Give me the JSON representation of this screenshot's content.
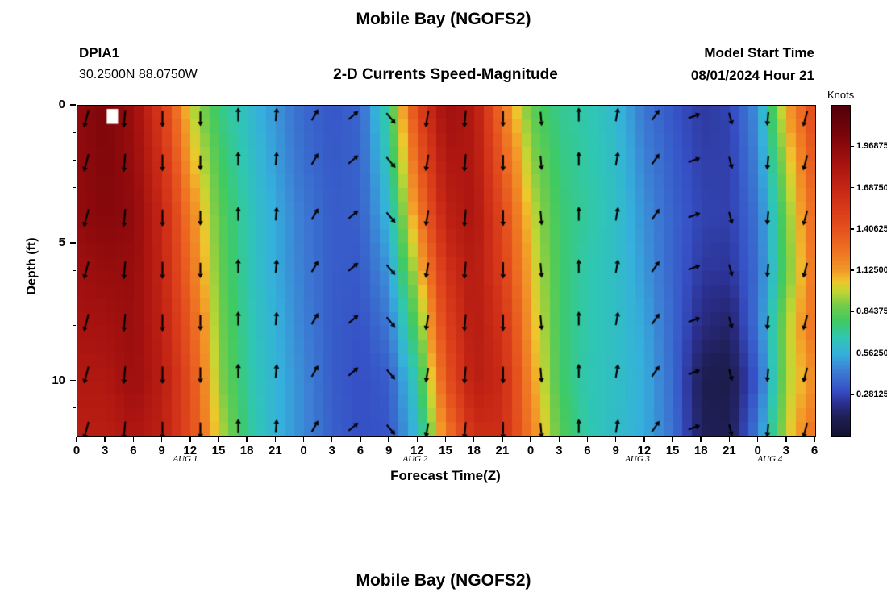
{
  "page": {
    "title_top": "Mobile Bay (NGOFS2)",
    "title_bottom": "Mobile Bay (NGOFS2)"
  },
  "header": {
    "station_id": "DPIA1",
    "station_coords": "30.2500N  88.0750W",
    "plot_subtitle": "2-D Currents Speed-Magnitude",
    "model_start_label": "Model Start Time",
    "model_start_value": "08/01/2024 Hour 21"
  },
  "chart_data": {
    "type": "heatmap",
    "title": "Mobile Bay (NGOFS2)",
    "subtitle": "2-D Currents Speed-Magnitude",
    "xlabel": "Forecast Time(Z)",
    "ylabel": "Depth (ft)",
    "colorbar_label": "Knots",
    "colorbar_range": [
      0,
      2.25
    ],
    "colorbar_tick_labels": [
      "1.96875",
      "1.68750",
      "1.40625",
      "1.12500",
      "0.84375",
      "0.56250",
      "0.28125"
    ],
    "x_hours_range": [
      0,
      78
    ],
    "x_tick_hours": [
      0,
      3,
      6,
      9,
      12,
      15,
      18,
      21,
      24,
      27,
      30,
      33,
      36,
      39,
      42,
      45,
      48,
      51,
      54,
      57,
      60,
      63,
      66,
      69,
      72,
      75,
      78
    ],
    "x_tick_labels": [
      "0",
      "3",
      "6",
      "9",
      "12",
      "15",
      "18",
      "21",
      "0",
      "3",
      "6",
      "9",
      "12",
      "15",
      "18",
      "21",
      "0",
      "3",
      "6",
      "9",
      "12",
      "15",
      "18",
      "21",
      "0",
      "3",
      "6"
    ],
    "date_labels": [
      {
        "label": "AUG 1",
        "t": 11.5
      },
      {
        "label": "AUG 2",
        "t": 35.8
      },
      {
        "label": "AUG 3",
        "t": 59.3
      },
      {
        "label": "AUG 4",
        "t": 73.3
      }
    ],
    "depth_range": [
      0,
      12
    ],
    "y_ticks": [
      {
        "label": "0",
        "depth": 0
      },
      {
        "label": "5",
        "depth": 5
      },
      {
        "label": "10",
        "depth": 10
      }
    ],
    "grid_t": [
      0,
      3,
      6,
      9,
      12,
      15,
      18,
      21,
      24,
      27,
      30,
      33,
      36,
      39,
      42,
      45,
      48,
      51,
      54,
      57,
      60,
      63,
      66,
      69,
      72,
      75,
      78
    ],
    "grid_depth": [
      0,
      2,
      4,
      6,
      8,
      10,
      12
    ],
    "values": [
      [
        1.95,
        2.05,
        1.9,
        1.55,
        1.0,
        0.75,
        0.62,
        0.5,
        0.38,
        0.33,
        0.38,
        0.75,
        1.5,
        1.9,
        1.8,
        1.25,
        0.85,
        0.72,
        0.68,
        0.6,
        0.42,
        0.33,
        0.25,
        0.28,
        0.5,
        1.1,
        1.5
      ],
      [
        1.95,
        2.03,
        1.93,
        1.62,
        1.11,
        0.8,
        0.65,
        0.52,
        0.4,
        0.34,
        0.37,
        0.68,
        1.35,
        1.82,
        1.82,
        1.36,
        0.93,
        0.75,
        0.69,
        0.62,
        0.46,
        0.35,
        0.27,
        0.27,
        0.46,
        0.98,
        1.42
      ],
      [
        1.95,
        2.01,
        1.96,
        1.69,
        1.22,
        0.85,
        0.67,
        0.55,
        0.43,
        0.35,
        0.36,
        0.6,
        1.2,
        1.74,
        1.84,
        1.47,
        1.01,
        0.77,
        0.7,
        0.63,
        0.49,
        0.37,
        0.28,
        0.27,
        0.42,
        0.88,
        1.34
      ],
      [
        1.89,
        1.93,
        1.93,
        1.71,
        1.29,
        0.87,
        0.68,
        0.55,
        0.44,
        0.35,
        0.34,
        0.51,
        1.02,
        1.61,
        1.8,
        1.53,
        1.06,
        0.78,
        0.68,
        0.63,
        0.51,
        0.37,
        0.25,
        0.24,
        0.4,
        0.85,
        1.3
      ],
      [
        1.85,
        1.87,
        1.92,
        1.74,
        1.37,
        0.9,
        0.69,
        0.57,
        0.45,
        0.35,
        0.32,
        0.43,
        0.85,
        1.5,
        1.79,
        1.61,
        1.11,
        0.78,
        0.68,
        0.63,
        0.54,
        0.38,
        0.2,
        0.16,
        0.42,
        0.95,
        1.3
      ],
      [
        1.81,
        1.81,
        1.91,
        1.77,
        1.44,
        0.93,
        0.7,
        0.58,
        0.47,
        0.35,
        0.31,
        0.35,
        0.7,
        1.4,
        1.77,
        1.67,
        1.16,
        0.79,
        0.67,
        0.63,
        0.56,
        0.39,
        0.12,
        0.1,
        0.35,
        0.95,
        1.2
      ],
      [
        1.76,
        1.76,
        1.83,
        1.74,
        1.46,
        1.0,
        0.72,
        0.58,
        0.47,
        0.36,
        0.31,
        0.33,
        0.61,
        1.22,
        1.64,
        1.64,
        1.22,
        0.84,
        0.68,
        0.62,
        0.55,
        0.41,
        0.14,
        0.12,
        0.45,
        1.0,
        1.3
      ]
    ],
    "missing_cell": {
      "t0": 3.1,
      "t1": 4.3,
      "d0": 0.12,
      "d1": 0.66
    },
    "colormap": [
      [
        0.0,
        "#12122e"
      ],
      [
        0.06,
        "#1f1f56"
      ],
      [
        0.1,
        "#2b2f8e"
      ],
      [
        0.14,
        "#3650c6"
      ],
      [
        0.2,
        "#3c7fd4"
      ],
      [
        0.25,
        "#35b0dc"
      ],
      [
        0.3,
        "#2fc7b2"
      ],
      [
        0.35,
        "#3fca62"
      ],
      [
        0.4,
        "#79cc48"
      ],
      [
        0.44,
        "#c3d633"
      ],
      [
        0.47,
        "#eec72c"
      ],
      [
        0.5,
        "#f29b28"
      ],
      [
        0.565,
        "#ee7122"
      ],
      [
        0.625,
        "#e5521e"
      ],
      [
        0.69,
        "#d83a1a"
      ],
      [
        0.75,
        "#c62715"
      ],
      [
        0.82,
        "#aa1410"
      ],
      [
        0.875,
        "#8e0a0c"
      ],
      [
        0.94,
        "#6d0309"
      ],
      [
        1.0,
        "#53000a"
      ]
    ],
    "arrows": {
      "color": "#000000",
      "depths": [
        0.4,
        2.0,
        4.0,
        5.9,
        7.8,
        9.7,
        11.7
      ],
      "columns": [
        {
          "t": 1,
          "dir": 195
        },
        {
          "t": 5,
          "dir": 185
        },
        {
          "t": 9,
          "dir": 180
        },
        {
          "t": 13,
          "dir": 180
        },
        {
          "t": 17,
          "dir": 0
        },
        {
          "t": 21,
          "dir": 5
        },
        {
          "t": 25,
          "dir": 30
        },
        {
          "t": 29,
          "dir": 50
        },
        {
          "t": 33,
          "dir": 140
        },
        {
          "t": 37,
          "dir": 190
        },
        {
          "t": 41,
          "dir": 185
        },
        {
          "t": 45,
          "dir": 180
        },
        {
          "t": 49,
          "dir": 175
        },
        {
          "t": 53,
          "dir": 0
        },
        {
          "t": 57,
          "dir": 10
        },
        {
          "t": 61,
          "dir": 35
        },
        {
          "t": 65,
          "dir": 70
        },
        {
          "t": 69,
          "dir": 165
        },
        {
          "t": 73,
          "dir": 185
        },
        {
          "t": 77,
          "dir": 195
        }
      ]
    },
    "legend_position": "right",
    "grid": false
  }
}
